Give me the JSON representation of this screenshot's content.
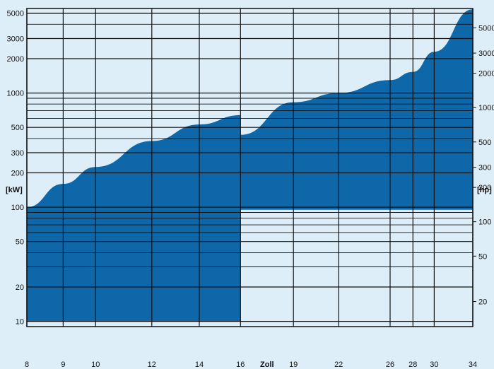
{
  "chart_data": {
    "type": "area",
    "title": "",
    "xlabel": "Zoll",
    "ylabel_left": "[kW]",
    "ylabel_right": "[hp]",
    "x_scale": "log",
    "y_scale": "log",
    "xlim": [
      8,
      34
    ],
    "ylim_left": [
      9,
      5500
    ],
    "x_ticks": [
      8,
      9,
      10,
      12,
      14,
      16,
      19,
      22,
      26,
      28,
      30,
      34
    ],
    "x_tick_labels": [
      "8",
      "9",
      "10",
      "12",
      "14",
      "16",
      "19",
      "22",
      "26",
      "28",
      "30",
      "34"
    ],
    "y_ticks_left": [
      10,
      20,
      50,
      100,
      200,
      300,
      500,
      1000,
      2000,
      3000,
      5000
    ],
    "y_tick_labels_left": [
      "10",
      "20",
      "50",
      "100",
      "200",
      "300",
      "500",
      "1000",
      "2000",
      "3000",
      "5000"
    ],
    "y_ticks_right_hp": [
      20,
      50,
      100,
      200,
      300,
      500,
      1000,
      2000,
      3000,
      5000
    ],
    "y_tick_labels_right": [
      "20",
      "50",
      "100",
      "200",
      "300",
      "500",
      "1000",
      "2000",
      "3000",
      "5000"
    ],
    "kw_per_hp": 0.7457,
    "grid": true,
    "series": [
      {
        "color": "#0e67a8",
        "upper": {
          "x": [
            8,
            9,
            10,
            12,
            14,
            16
          ],
          "y": [
            100,
            160,
            225,
            380,
            530,
            640
          ]
        },
        "lower": 10
      },
      {
        "color": "#0e67a8",
        "upper": {
          "x": [
            16,
            19,
            22,
            26,
            28,
            30,
            34
          ],
          "y": [
            430,
            830,
            1000,
            1300,
            1530,
            2300,
            5400
          ]
        },
        "lower": 95
      }
    ]
  },
  "colors": {
    "background": "#ddeef9",
    "area": "#0e67a8",
    "grid": "#111111"
  }
}
